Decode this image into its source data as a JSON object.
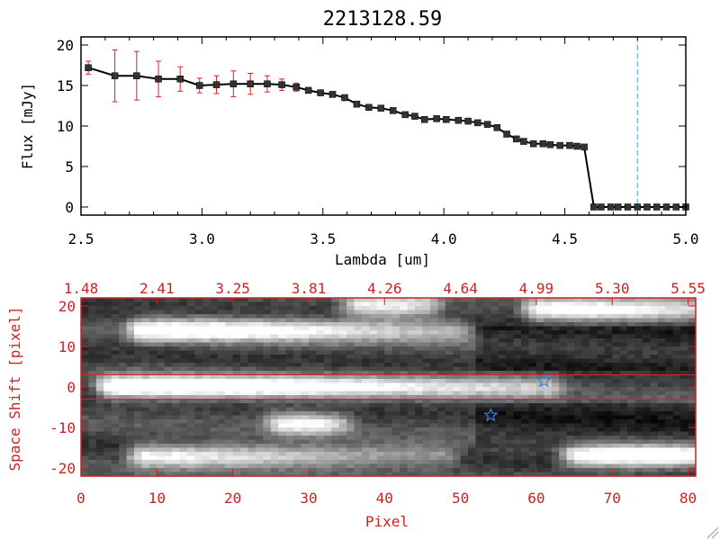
{
  "chart_data": [
    {
      "type": "line",
      "title": "2213128.59",
      "xlabel": "Lambda [um]",
      "ylabel": "Flux [mJy]",
      "xlim": [
        2.5,
        5.0
      ],
      "ylim": [
        -1,
        21
      ],
      "xticks": [
        "2.5",
        "3.0",
        "3.5",
        "4.0",
        "4.5",
        "5.0"
      ],
      "yticks": [
        "0",
        "5",
        "10",
        "15",
        "20"
      ],
      "grid": false,
      "marker_color": "#000000",
      "errorbar_color": "#dd2222",
      "vline_color": "#4aa3df",
      "vline_x": 4.8,
      "series": [
        {
          "x": [
            2.53,
            2.64,
            2.73,
            2.82,
            2.91,
            2.99,
            3.06,
            3.13,
            3.2,
            3.27,
            3.33,
            3.39,
            3.44,
            3.49,
            3.54,
            3.59,
            3.64,
            3.69,
            3.74,
            3.79,
            3.84,
            3.88,
            3.92,
            3.97,
            4.01,
            4.06,
            4.1,
            4.14,
            4.18,
            4.22,
            4.26,
            4.3,
            4.33,
            4.37,
            4.41,
            4.44,
            4.48,
            4.52,
            4.55,
            4.58,
            4.62,
            4.65,
            4.69,
            4.72,
            4.76,
            4.8,
            4.84,
            4.88,
            4.92,
            4.96,
            5.0
          ],
          "y": [
            17.2,
            16.2,
            16.2,
            15.8,
            15.8,
            15.0,
            15.1,
            15.2,
            15.2,
            15.2,
            15.1,
            14.8,
            14.4,
            14.1,
            13.9,
            13.5,
            12.7,
            12.3,
            12.2,
            11.9,
            11.4,
            11.2,
            10.8,
            10.9,
            10.8,
            10.7,
            10.6,
            10.4,
            10.2,
            9.8,
            9.0,
            8.4,
            8.1,
            7.8,
            7.8,
            7.7,
            7.6,
            7.6,
            7.5,
            7.4,
            0,
            0,
            0,
            0,
            0,
            0,
            0,
            0,
            0,
            0,
            0
          ],
          "yerr": [
            0.8,
            3.2,
            3.0,
            2.2,
            1.5,
            0.9,
            1.1,
            1.6,
            1.3,
            1.0,
            0.7,
            0.5,
            0.3,
            0.3,
            0.3,
            0.3,
            0.3,
            0.3,
            0.3,
            0.3,
            0.3,
            0.3,
            0.3,
            0.3,
            0.3,
            0.3,
            0.3,
            0.3,
            0.3,
            0.3,
            0.3,
            0.3,
            0.3,
            0.3,
            0.3,
            0.3,
            0.3,
            0.3,
            0.3,
            0.3,
            0.3,
            0.3,
            0.3,
            0.3,
            0.3,
            0.3,
            0.3,
            0.3,
            0.3,
            0.3,
            0.3
          ]
        }
      ]
    },
    {
      "type": "heatmap",
      "xlabel": "Pixel",
      "ylabel": "Space Shift [pixel]",
      "xlim": [
        0,
        81
      ],
      "ylim": [
        -22,
        22
      ],
      "xticks": [
        "0",
        "10",
        "20",
        "30",
        "40",
        "50",
        "60",
        "70",
        "80"
      ],
      "yticks": [
        "20",
        "10",
        "0",
        "-10",
        "-20"
      ],
      "top_axis_ticks": [
        "1.48",
        "2.41",
        "3.25",
        "3.81",
        "4.26",
        "4.64",
        "4.99",
        "5.30",
        "5.55"
      ],
      "colormap": "grayscale",
      "axis_color": "#cc2222",
      "aperture_lines_y": [
        3,
        -3
      ],
      "aperture_line_color": "#dd2222",
      "markers": [
        {
          "shape": "star",
          "x": 61,
          "y": 1.5,
          "color": "#3a7fd6"
        },
        {
          "shape": "star",
          "x": 54,
          "y": -7,
          "color": "#3a7fd6"
        }
      ],
      "bright_features": [
        {
          "x0": 4,
          "x1": 62,
          "y": 0,
          "peak_x": 9,
          "intensity": 0.95
        },
        {
          "x0": 8,
          "x1": 50,
          "y": 14,
          "peak_x": 13,
          "intensity": 0.85
        },
        {
          "x0": 8,
          "x1": 48,
          "y": -17,
          "peak_x": 9,
          "intensity": 0.75
        },
        {
          "x0": 65,
          "x1": 81,
          "y": -17,
          "peak_x": 73,
          "intensity": 1.0
        },
        {
          "x0": 60,
          "x1": 81,
          "y": 19,
          "peak_x": 66,
          "intensity": 0.8
        },
        {
          "x0": 36,
          "x1": 46,
          "y": 20,
          "peak_x": 40,
          "intensity": 0.7
        },
        {
          "x0": 26,
          "x1": 34,
          "y": -9,
          "peak_x": 29,
          "intensity": 0.7
        }
      ]
    }
  ]
}
